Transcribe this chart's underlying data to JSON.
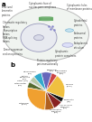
{
  "panel_a": {
    "bg_color": "#f5f5f5",
    "cell_color": "#f0f4f0",
    "cell_edge": "#bbbbbb",
    "nucleus_color": "#e8eaf0",
    "nucleus_edge": "#9999bb",
    "nucleolus_color": "#d8dae8",
    "golgi_color": "#88bb88",
    "label": "a"
  },
  "panel_b": {
    "label": "b",
    "slices": [
      {
        "label": "Protein\nprocessing\n(5%)",
        "value": 5,
        "color": "#b8c9a8"
      },
      {
        "label": "Other (1%)",
        "value": 1,
        "color": "#aaaaaa"
      },
      {
        "label": "Cytoskeletal\n(5%)",
        "value": 5,
        "color": "#556b2f"
      },
      {
        "label": "Cytoplasm\n(27%)",
        "value": 27,
        "color": "#f0a030"
      },
      {
        "label": "Transcription\nregulation\n(8%)",
        "value": 8,
        "color": "#b06020"
      },
      {
        "label": "Cell cycle or\napoptosis\n(8%)",
        "value": 8,
        "color": "#882222"
      },
      {
        "label": "Chromatin\n(4%)",
        "value": 4,
        "color": "#111111"
      },
      {
        "label": "Nucleus\n(21%)",
        "value": 21,
        "color": "#f0c040"
      },
      {
        "label": "Endoplasmic\nreticulum\n(5%)",
        "value": 5,
        "color": "#cc4444"
      },
      {
        "label": "Ribosomal\n(9%)",
        "value": 9,
        "color": "#6666bb"
      },
      {
        "label": "Mitochondria\n(7%)",
        "value": 7,
        "color": "#33aacc"
      }
    ],
    "startangle": 130
  }
}
